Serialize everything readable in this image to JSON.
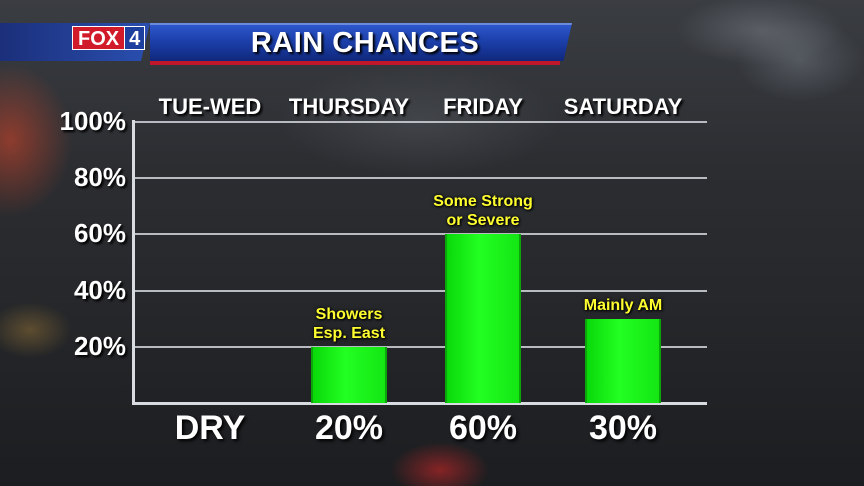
{
  "header": {
    "logo_text": "FOX",
    "logo_number": "4",
    "title": "RAIN CHANCES"
  },
  "chart_data": {
    "type": "bar",
    "title": "RAIN CHANCES",
    "categories": [
      "TUE-WED",
      "THURSDAY",
      "FRIDAY",
      "SATURDAY"
    ],
    "values": [
      0,
      20,
      60,
      30
    ],
    "value_labels": [
      "DRY",
      "20%",
      "60%",
      "30%"
    ],
    "annotations": [
      [
        "",
        ""
      ],
      [
        "Showers",
        "Esp. East"
      ],
      [
        "Some Strong",
        "or Severe"
      ],
      [
        "Mainly AM",
        ""
      ]
    ],
    "ylim": [
      0,
      100
    ],
    "y_ticks": [
      "100%",
      "80%",
      "60%",
      "40%",
      "20%"
    ],
    "y_tick_values": [
      100,
      80,
      60,
      40,
      20
    ],
    "grid": true,
    "bar_color": "#22ff22",
    "annotation_color": "#ffff30"
  }
}
